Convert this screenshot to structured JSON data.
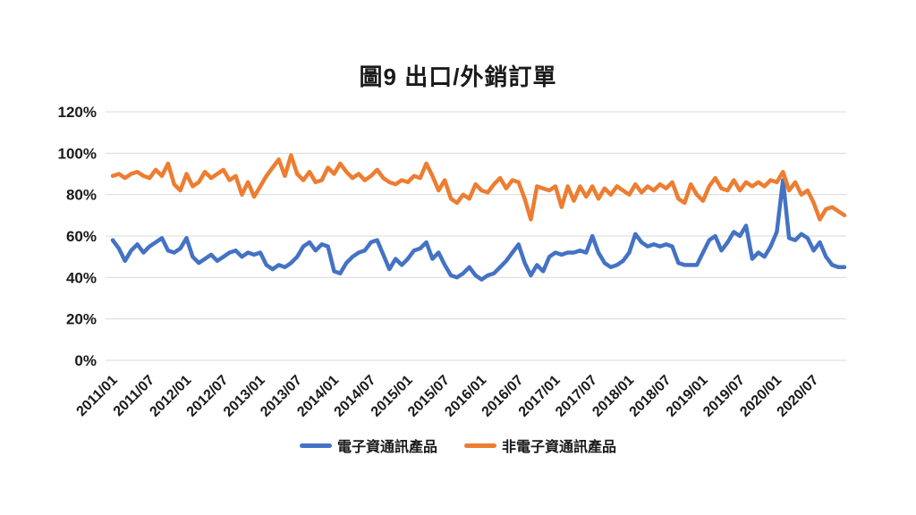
{
  "title": "圖9  出口/外銷訂單",
  "chart_data": {
    "type": "line",
    "x_start": "2011/01",
    "x_end": "2020/12",
    "frequency": "monthly",
    "x_tick_labels": [
      "2011/01",
      "2011/07",
      "2012/01",
      "2012/07",
      "2013/01",
      "2013/07",
      "2014/01",
      "2014/07",
      "2015/01",
      "2015/07",
      "2016/01",
      "2016/07",
      "2017/01",
      "2017/07",
      "2018/01",
      "2018/07",
      "2019/01",
      "2019/07",
      "2020/01",
      "2020/07"
    ],
    "y_tick_labels": [
      "0%",
      "20%",
      "40%",
      "60%",
      "80%",
      "100%",
      "120%"
    ],
    "ylim": [
      0,
      120
    ],
    "y_unit": "%",
    "grid": "horizontal",
    "gridline_color": "#d9d9d9",
    "axis_text_color": "#1a1a1a",
    "legend_position": "bottom",
    "series": [
      {
        "name": "電子資通訊產品",
        "color": "#4472C4",
        "values": [
          58,
          54,
          48,
          53,
          56,
          52,
          55,
          57,
          59,
          53,
          52,
          54,
          59,
          50,
          47,
          49,
          51,
          48,
          50,
          52,
          53,
          50,
          52,
          51,
          52,
          46,
          44,
          46,
          45,
          47,
          50,
          55,
          57,
          53,
          56,
          55,
          43,
          42,
          47,
          50,
          52,
          53,
          57,
          58,
          51,
          44,
          49,
          46,
          49,
          53,
          54,
          57,
          49,
          52,
          46,
          41,
          40,
          42,
          45,
          41,
          39,
          41,
          42,
          45,
          48,
          52,
          56,
          47,
          41,
          46,
          43,
          50,
          52,
          51,
          52,
          52,
          53,
          52,
          60,
          52,
          47,
          45,
          46,
          48,
          52,
          61,
          57,
          55,
          56,
          55,
          56,
          55,
          47,
          46,
          46,
          46,
          52,
          58,
          60,
          53,
          57,
          62,
          60,
          65,
          49,
          52,
          50,
          55,
          62,
          87,
          59,
          58,
          61,
          59,
          53,
          57,
          50,
          46,
          45,
          45
        ]
      },
      {
        "name": "非電子資通訊產品",
        "color": "#ED7D31",
        "values": [
          89,
          90,
          88,
          90,
          91,
          89,
          88,
          92,
          89,
          95,
          85,
          82,
          90,
          84,
          86,
          91,
          88,
          90,
          92,
          87,
          89,
          80,
          86,
          79,
          84,
          89,
          93,
          97,
          89,
          99,
          90,
          87,
          91,
          86,
          87,
          93,
          90,
          95,
          91,
          88,
          90,
          87,
          89,
          92,
          88,
          86,
          85,
          87,
          86,
          89,
          88,
          95,
          89,
          82,
          87,
          78,
          76,
          80,
          78,
          85,
          82,
          81,
          85,
          88,
          83,
          87,
          86,
          78,
          68,
          84,
          83,
          82,
          84,
          74,
          84,
          77,
          84,
          79,
          84,
          78,
          83,
          80,
          84,
          82,
          80,
          85,
          81,
          84,
          82,
          85,
          83,
          86,
          78,
          76,
          85,
          80,
          77,
          84,
          88,
          83,
          82,
          87,
          82,
          86,
          84,
          86,
          84,
          87,
          86,
          91,
          82,
          86,
          80,
          82,
          76,
          68,
          73,
          74,
          72,
          70
        ]
      }
    ]
  }
}
